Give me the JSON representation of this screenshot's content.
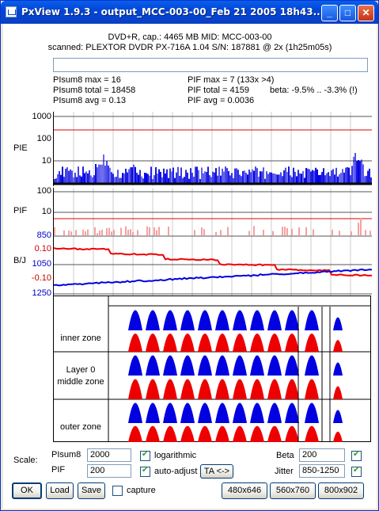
{
  "window": {
    "title": "PxView 1.9.3  -  output_MCC-003-00_Feb 21 2005 18h43..."
  },
  "title_buttons": {
    "minimize": "_",
    "maximize": "□",
    "close": "✕"
  },
  "header": {
    "line1": "DVD+R, cap.: 4465 MB MID: MCC-003-00",
    "line2": "scanned: PLEXTOR DVDR PX-716A 1.04 S/N: 187881 @ 2x (1h25m05s)"
  },
  "progress": 0,
  "stats": {
    "pisum8_max": "PIsum8 max = 16",
    "pisum8_total": "PIsum8 total = 18458",
    "pisum8_avg": "PIsum8 avg = 0.13",
    "pif_max": "PIF max = 7 (133x >4)",
    "pif_total": "PIF total = 4159",
    "pif_avg": "PIF avg = 0.0036",
    "beta": "beta: -9.5% .. -3.3% (!)"
  },
  "pie_chart": {
    "label": "PIE",
    "ticks": [
      "1000",
      "100",
      "10"
    ]
  },
  "pif_chart": {
    "label": "PIF",
    "ticks": [
      "100",
      "10"
    ]
  },
  "bj_chart": {
    "label": "B/J",
    "ticks": [
      {
        "text": "850",
        "color": "#0000cc"
      },
      {
        "text": "0.10",
        "color": "#cc0000"
      },
      {
        "text": "1050",
        "color": "#0000cc"
      },
      {
        "text": "-0.10",
        "color": "#cc0000"
      },
      {
        "text": "1250",
        "color": "#0000cc"
      }
    ]
  },
  "zones": {
    "inner": "inner zone",
    "middle_1": "Layer 0",
    "middle_2": "middle zone",
    "outer": "outer zone"
  },
  "colors": {
    "blue": "#0000e0",
    "red": "#ee0000",
    "pink": "#f7a0a0"
  },
  "controls": {
    "scale_label": "Scale:",
    "pisum8_label": "PIsum8",
    "pisum8_value": "2000",
    "pif_label": "PIF",
    "pif_value": "200",
    "logarithmic_label": "logarithmic",
    "logarithmic_checked": true,
    "autoadjust_label": "auto-adjust",
    "autoadjust_checked": true,
    "ta_button": "TA <->",
    "beta_label": "Beta",
    "beta_value": "200",
    "beta_checked": true,
    "jitter_label": "Jitter",
    "jitter_value": "850-1250",
    "jitter_checked": true
  },
  "buttons": {
    "ok": "OK",
    "load": "Load",
    "save": "Save",
    "capture": "capture",
    "capture_checked": false,
    "size1": "480x646",
    "size2": "560x760",
    "size3": "800x902"
  }
}
